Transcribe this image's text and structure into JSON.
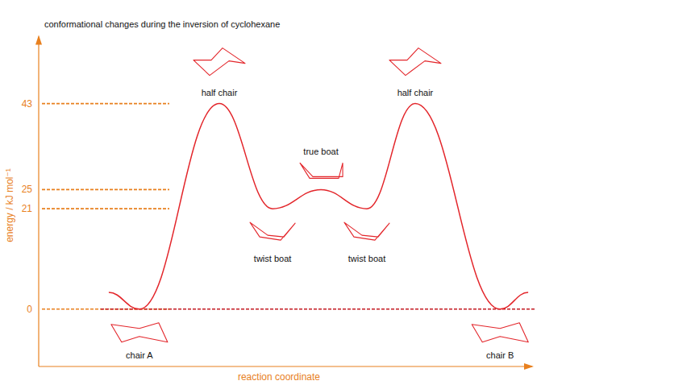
{
  "chart_data": {
    "type": "line",
    "title": "conformational changes during the inversion of cyclohexane",
    "y_label": "energy / kJ mol⁻¹",
    "x_label": "reaction coordinate",
    "x": [
      14.2,
      20.4,
      36.6,
      47.4,
      57.2,
      66.5,
      76.3,
      93.5,
      99.2
    ],
    "values": [
      3.5,
      0,
      43,
      21,
      25,
      21,
      43,
      0,
      3.5
    ],
    "labels": [
      null,
      "chair A",
      "half chair",
      "twist boat",
      "true boat",
      "twist boat",
      "half chair",
      "chair B",
      null
    ],
    "color": "#e3262b",
    "xlim": [
      0,
      100
    ],
    "ylim": [
      -12,
      57
    ],
    "yticks": [
      0,
      21,
      25,
      43
    ],
    "tick_labels": "y"
  }
}
